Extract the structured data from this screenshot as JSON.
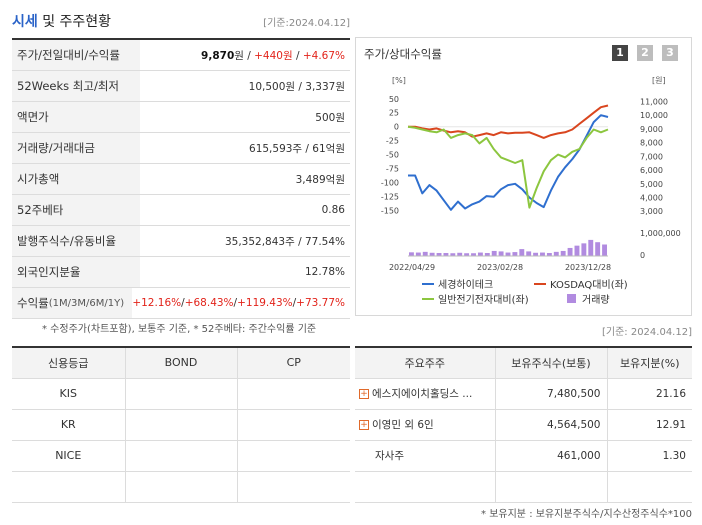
{
  "header": {
    "title_main": "시세",
    "title_rest": " 및 주주현황",
    "date": "[기준:2024.04.12]"
  },
  "price_rows": [
    {
      "label": "주가/전일대비/수익률",
      "parts": [
        {
          "text": "9,870",
          "style": "bold"
        },
        {
          "text": "원 / ",
          "style": ""
        },
        {
          "text": "+440원",
          "style": "red"
        },
        {
          "text": " / ",
          "style": ""
        },
        {
          "text": "+4.67%",
          "style": "red"
        }
      ]
    },
    {
      "label": "52Weeks 최고/최저",
      "parts": [
        {
          "text": "10,500원 / 3,337원",
          "style": ""
        }
      ]
    },
    {
      "label": "액면가",
      "parts": [
        {
          "text": "500원",
          "style": ""
        }
      ]
    },
    {
      "label": "거래량/거래대금",
      "parts": [
        {
          "text": "615,593주 / 61억원",
          "style": ""
        }
      ]
    },
    {
      "label": "시가총액",
      "parts": [
        {
          "text": "3,489억원",
          "style": ""
        }
      ]
    },
    {
      "label": "52주베타",
      "parts": [
        {
          "text": "0.86",
          "style": ""
        }
      ]
    },
    {
      "label": "발행주식수/유동비율",
      "parts": [
        {
          "text": "35,352,843주 / 77.54%",
          "style": ""
        }
      ]
    },
    {
      "label": "외국인지분율",
      "parts": [
        {
          "text": "12.78%",
          "style": ""
        }
      ]
    }
  ],
  "returns_row": {
    "label": "수익률",
    "sublabel": "(1M/3M/6M/1Y)",
    "parts": [
      {
        "text": "+12.16%",
        "style": "red"
      },
      {
        "text": "/",
        "style": ""
      },
      {
        "text": "+68.43%",
        "style": "red"
      },
      {
        "text": "/",
        "style": ""
      },
      {
        "text": "+119.43%",
        "style": "red"
      },
      {
        "text": "/",
        "style": ""
      },
      {
        "text": "+73.77%",
        "style": "red"
      }
    ]
  },
  "left_note": "* 수정주가(차트포함), 보통주 기준, * 52주베타: 주간수익률 기준",
  "chart": {
    "title": "주가/상대수익률",
    "tabs": [
      "1",
      "2",
      "3"
    ],
    "active_tab": "1",
    "left_unit": "[%]",
    "right_unit": "[원]"
  },
  "chart_data": {
    "type": "line",
    "x_labels": [
      "2022/04/29",
      "2023/02/28",
      "2023/12/28"
    ],
    "left_axis": {
      "label": "[%]",
      "ticks": [
        50,
        25,
        0,
        -25,
        -50,
        -75,
        -100,
        -125,
        -150
      ],
      "range": [
        -160,
        55
      ]
    },
    "right_axis": {
      "label": "[원]",
      "ticks": [
        "11,000",
        "10,000",
        "9,000",
        "8,000",
        "7,000",
        "6,000",
        "5,000",
        "4,000",
        "3,000"
      ],
      "range": [
        2650,
        11400
      ]
    },
    "volume_axis": {
      "ticks": [
        "1,000,000",
        "0"
      ],
      "max": 1000000
    },
    "series": [
      {
        "name": "세경하이테크",
        "color": "#2f6fcf",
        "axis": "right",
        "values": [
          5600,
          5600,
          4300,
          4900,
          4500,
          3800,
          3100,
          3700,
          3200,
          3500,
          3700,
          4100,
          4050,
          4600,
          4900,
          5000,
          4600,
          4000,
          3600,
          3300,
          4500,
          5500,
          6200,
          6800,
          7500,
          8500,
          9500,
          10000,
          9870
        ]
      },
      {
        "name": "KOSDAQ대비(좌)",
        "color": "#d9461f",
        "axis": "left",
        "values": [
          0,
          0,
          -3,
          -5,
          -3,
          -7,
          -10,
          -8,
          -10,
          -18,
          -15,
          -12,
          -15,
          -10,
          -12,
          -11,
          -11,
          -10,
          -15,
          -20,
          -15,
          -12,
          -10,
          -5,
          5,
          15,
          25,
          35,
          38
        ]
      },
      {
        "name": "일반전기전자대비(좌)",
        "color": "#8cc63f",
        "axis": "left",
        "values": [
          0,
          -2,
          -5,
          -8,
          -10,
          -5,
          -20,
          -15,
          -12,
          -15,
          -30,
          -20,
          -40,
          -55,
          -60,
          -65,
          -60,
          -145,
          -110,
          -80,
          -60,
          -50,
          -55,
          -45,
          -40,
          -20,
          -5,
          -10,
          -5
        ]
      }
    ],
    "volume": {
      "name": "거래량",
      "color": "#b18be0",
      "values": [
        0.16,
        0.15,
        0.18,
        0.14,
        0.13,
        0.13,
        0.12,
        0.14,
        0.12,
        0.12,
        0.15,
        0.13,
        0.22,
        0.2,
        0.15,
        0.17,
        0.3,
        0.2,
        0.14,
        0.15,
        0.13,
        0.18,
        0.22,
        0.35,
        0.45,
        0.55,
        0.7,
        0.6,
        0.5
      ]
    }
  },
  "chart_legend": [
    {
      "label": "세경하이테크",
      "color": "#2f6fcf",
      "kind": "line"
    },
    {
      "label": "KOSDAQ대비(좌)",
      "color": "#d9461f",
      "kind": "line"
    },
    {
      "label": "일반전기전자대비(좌)",
      "color": "#8cc63f",
      "kind": "line"
    },
    {
      "label": "거래량",
      "color": "#b18be0",
      "kind": "box"
    }
  ],
  "right_date": "[기준: 2024.04.12]",
  "credit": {
    "headers": [
      "신용등급",
      "BOND",
      "CP"
    ],
    "rows": [
      [
        "KIS",
        "",
        ""
      ],
      [
        "KR",
        "",
        ""
      ],
      [
        "NICE",
        "",
        ""
      ],
      [
        "",
        "",
        ""
      ]
    ]
  },
  "holders": {
    "headers": [
      "주요주주",
      "보유주식수(보통)",
      "보유지분(%)"
    ],
    "rows": [
      {
        "name": "에스지에이치홀딩스 ...",
        "expand": true,
        "shares": "7,480,500",
        "pct": "21.16"
      },
      {
        "name": "이영민 외 6인",
        "expand": true,
        "shares": "4,564,500",
        "pct": "12.91"
      },
      {
        "name": "자사주",
        "expand": false,
        "shares": "461,000",
        "pct": "1.30"
      },
      {
        "name": "",
        "expand": false,
        "shares": "",
        "pct": ""
      }
    ]
  },
  "footer_note": "* 보유지분 : 보유지분주식수/지수산정주식수*100"
}
